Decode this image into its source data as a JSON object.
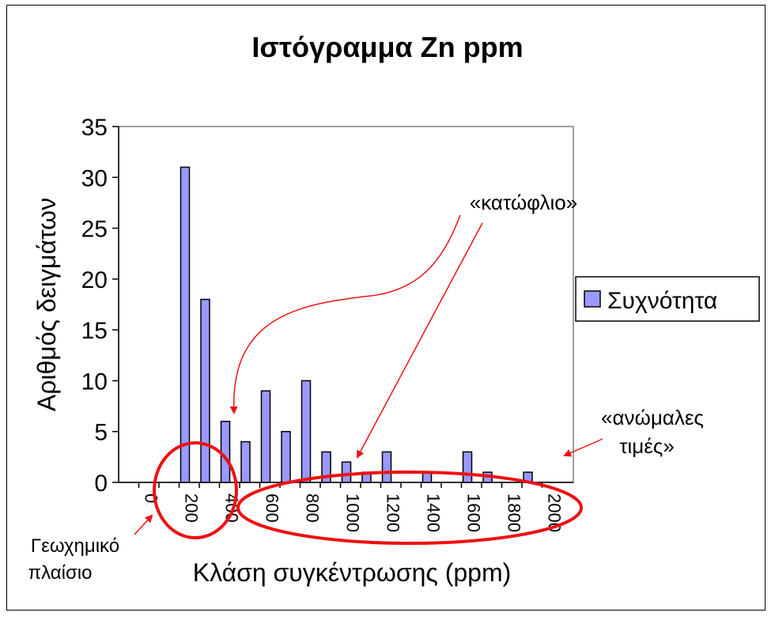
{
  "chart_data": {
    "type": "bar",
    "title": "Ιστόγραμμα Zn ppm",
    "xlabel": "Κλάση συγκέντρωσης (ppm)",
    "ylabel": "Αριθμός δειγμάτων",
    "categories": [
      "0",
      "100",
      "200",
      "300",
      "400",
      "500",
      "600",
      "700",
      "800",
      "900",
      "1000",
      "1100",
      "1200",
      "1300",
      "1400",
      "1500",
      "1600",
      "1700",
      "1800",
      "1900",
      "2000"
    ],
    "x_tick_labels": [
      "0",
      "200",
      "400",
      "600",
      "800",
      "1000",
      "1200",
      "1400",
      "1600",
      "1800",
      "2000"
    ],
    "y_tick_labels": [
      "0",
      "5",
      "10",
      "15",
      "20",
      "25",
      "30",
      "35"
    ],
    "series": [
      {
        "name": "Συχνότητα",
        "values": [
          0,
          0,
          31,
          18,
          6,
          4,
          9,
          5,
          10,
          3,
          2,
          1,
          3,
          0,
          1,
          0,
          3,
          1,
          0,
          1,
          0
        ]
      }
    ],
    "ylim": [
      0,
      35
    ],
    "grid": false,
    "legend_position": "right",
    "colors": {
      "bar_fill": "#9999ff",
      "bar_stroke": "#000000",
      "annotation": "#ee1111",
      "highlight": "#ee1111"
    },
    "annotations": {
      "threshold": "«κατώφλιο»",
      "anomalous_line1": "«ανώμαλες",
      "anomalous_line2": "τιμές»",
      "background_line1": "Γεωχημικό",
      "background_line2": "πλαίσιο"
    }
  }
}
